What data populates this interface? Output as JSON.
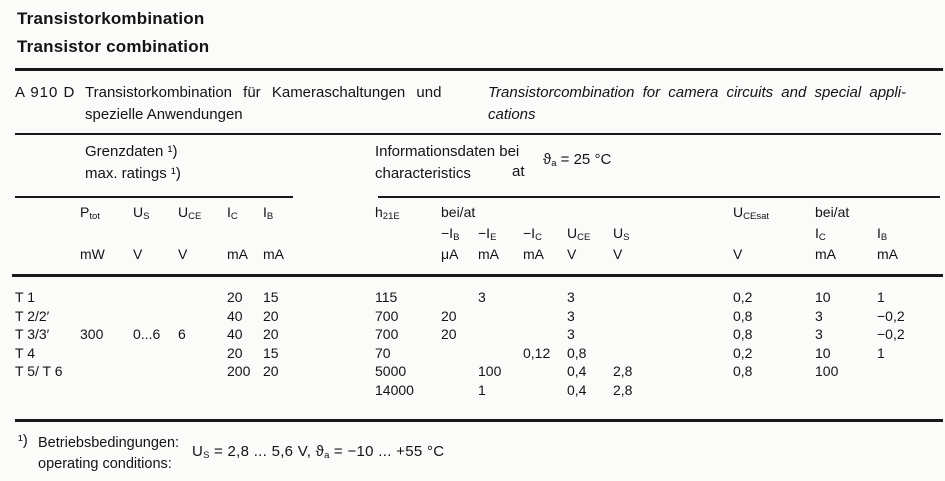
{
  "titles": {
    "de": "Transistorkombination",
    "en": "Transistor combination"
  },
  "part": {
    "number": "A 910 D",
    "description_de_line1": "Transistorkombination für Kameraschaltungen und",
    "description_de_line2": "spezielle Anwendungen",
    "description_en_line1": "Transistorcombination for camera circuits and special appli-",
    "description_en_line2": "cations"
  },
  "groups": {
    "limits": {
      "de": "Grenzdaten ¹)",
      "en": "max. ratings ¹)"
    },
    "characteristics": {
      "de": "Informationsdaten bei",
      "en": "characteristics",
      "at": "at",
      "temp": {
        "t_base": "ϑ",
        "t_sub": "a",
        "rest": " = 25 °C"
      }
    }
  },
  "table": {
    "bei_at_mid": "bei/at",
    "bei_at_right": "bei/at",
    "columns": [
      {
        "key": "label",
        "base": "",
        "sub": "",
        "unit": "",
        "header_row": 0
      },
      {
        "key": "ptot",
        "base": "P",
        "sub": "tot",
        "unit": "mW",
        "header_row": 1
      },
      {
        "key": "us",
        "base": "U",
        "sub": "S",
        "unit": "V",
        "header_row": 1
      },
      {
        "key": "uce",
        "base": "U",
        "sub": "CE",
        "unit": "V",
        "header_row": 1
      },
      {
        "key": "ic",
        "base": "I",
        "sub": "C",
        "unit": "mA",
        "header_row": 1
      },
      {
        "key": "ib",
        "base": "I",
        "sub": "B",
        "unit": "mA",
        "header_row": 1
      },
      {
        "key": "h21e",
        "base": "h",
        "sub": "21E",
        "unit": "",
        "header_row": 1
      },
      {
        "key": "m_ib",
        "base": "−I",
        "sub": "B",
        "unit": "μA",
        "header_row": 2
      },
      {
        "key": "m_ie",
        "base": "−I",
        "sub": "E",
        "unit": "mA",
        "header_row": 2
      },
      {
        "key": "m_ic",
        "base": "−I",
        "sub": "C",
        "unit": "mA",
        "header_row": 2
      },
      {
        "key": "m_uce",
        "base": "U",
        "sub": "CE",
        "unit": "V",
        "header_row": 2
      },
      {
        "key": "m_us",
        "base": "U",
        "sub": "S",
        "unit": "V",
        "header_row": 2
      },
      {
        "key": "ucesat",
        "base": "U",
        "sub": "CEsat",
        "unit": "V",
        "header_row": 1
      },
      {
        "key": "r_ic",
        "base": "I",
        "sub": "C",
        "unit": "mA",
        "header_row": 2
      },
      {
        "key": "r_ib",
        "base": "I",
        "sub": "B",
        "unit": "mA",
        "header_row": 2
      }
    ],
    "rows": [
      [
        "T 1",
        "",
        "",
        "",
        "20",
        "15",
        "115",
        "",
        "",
        "",
        "3",
        "",
        "0,2",
        "10",
        "1"
      ],
      [
        "T 2/2′",
        "",
        "",
        "",
        "40",
        "20",
        "700",
        "20",
        "",
        "",
        "3",
        "",
        "0,8",
        "3",
        "−0,2"
      ],
      [
        "T 3/3′",
        "300",
        "0...6",
        "6",
        "40",
        "20",
        "700",
        "20",
        "",
        "",
        "3",
        "",
        "0,8",
        "3",
        "−0,2"
      ],
      [
        "T 4",
        "",
        "",
        "",
        "20",
        "15",
        "70",
        "",
        "",
        "0,12",
        "0,8",
        "",
        "0,2",
        "10",
        "1"
      ],
      [
        "T 5/ T 6",
        "",
        "",
        "",
        "200",
        "20",
        "5000",
        "",
        "100",
        "",
        "0,4",
        "2,8",
        "0,8",
        "100",
        ""
      ],
      [
        "",
        "",
        "",
        "",
        "",
        "",
        "14000",
        "",
        "1",
        "",
        "0,4",
        "2,8",
        "",
        "",
        ""
      ]
    ],
    "row_1_mie": "3"
  },
  "footnote": {
    "ref": "¹)",
    "de": "Betriebsbedingungen:",
    "en": "operating conditions:",
    "formula": {
      "u_base": "U",
      "u_sub": "S",
      "seg1": " = 2,8 ... 5,6 V,  ",
      "t_base": "ϑ",
      "t_sub": "a",
      "seg2": " = −10 ... +55 °C"
    }
  }
}
